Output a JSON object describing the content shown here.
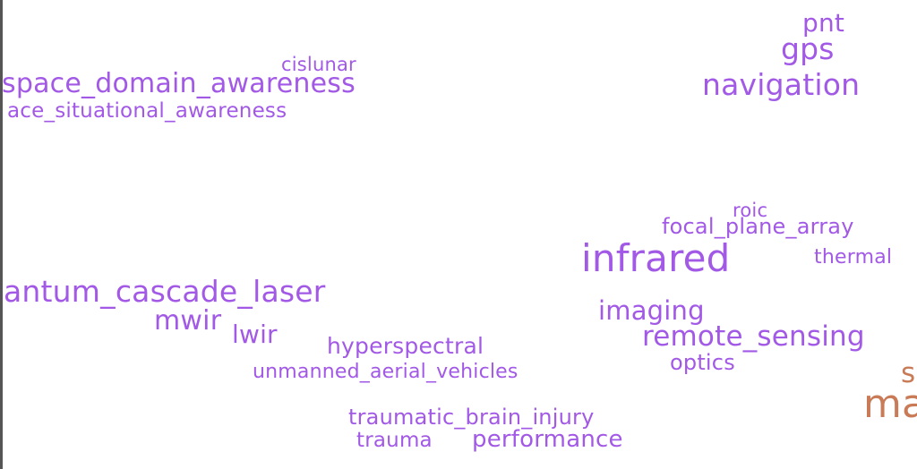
{
  "colors": {
    "purple": "#a259e6",
    "orange": "#c97b57",
    "background": "#ffffff"
  },
  "words": {
    "pnt": "pnt",
    "gps": "gps",
    "navigation": "navigation",
    "cislunar": "cislunar",
    "space_domain_awareness": "space_domain_awareness",
    "space_situational_awareness": "ace_situational_awareness",
    "roic": "roic",
    "focal_plane_array": "focal_plane_array",
    "infrared": "infrared",
    "thermal": "thermal",
    "quantum_cascade_laser": "antum_cascade_laser",
    "mwir": "mwir",
    "lwir": "lwir",
    "imaging": "imaging",
    "hyperspectral": "hyperspectral",
    "remote_sensing": "remote_sensing",
    "optics": "optics",
    "unmanned_aerial_vehicles": "unmanned_aerial_vehicles",
    "traumatic_brain_injury": "traumatic_brain_injury",
    "trauma": "trauma",
    "performance": "performance",
    "partial_s": "s",
    "partial_ma": "ma"
  }
}
